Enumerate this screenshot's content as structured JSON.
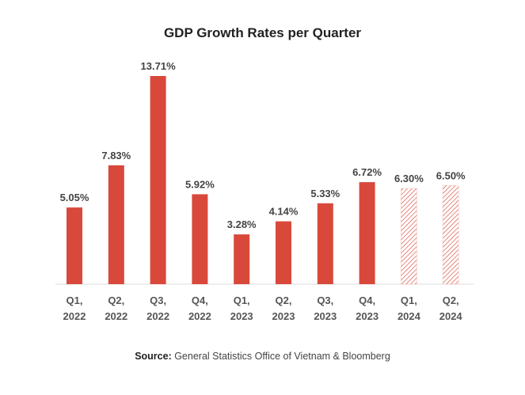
{
  "chart_data": {
    "type": "bar",
    "title": "GDP Growth Rates per Quarter",
    "categories": [
      [
        "Q1,",
        "2022"
      ],
      [
        "Q2,",
        "2022"
      ],
      [
        "Q3,",
        "2022"
      ],
      [
        "Q4,",
        "2022"
      ],
      [
        "Q1,",
        "2023"
      ],
      [
        "Q2,",
        "2023"
      ],
      [
        "Q3,",
        "2023"
      ],
      [
        "Q4,",
        "2023"
      ],
      [
        "Q1,",
        "2024"
      ],
      [
        "Q2,",
        "2024"
      ]
    ],
    "values": [
      5.05,
      7.83,
      13.71,
      5.92,
      3.28,
      4.14,
      5.33,
      6.72,
      6.3,
      6.5
    ],
    "value_labels": [
      "5.05%",
      "7.83%",
      "13.71%",
      "5.92%",
      "3.28%",
      "4.14%",
      "5.33%",
      "6.72%",
      "6.30%",
      "6.50%"
    ],
    "projected": [
      false,
      false,
      false,
      false,
      false,
      false,
      false,
      false,
      true,
      true
    ],
    "xlabel": "",
    "ylabel": "",
    "ylim": [
      0,
      13.71
    ],
    "grid": false,
    "colors": {
      "bar": "#d9493b",
      "projected": "#d9493b",
      "axis": "#dddddd"
    }
  },
  "source": {
    "label": "Source:",
    "text": " General Statistics Office of Vietnam & Bloomberg"
  }
}
